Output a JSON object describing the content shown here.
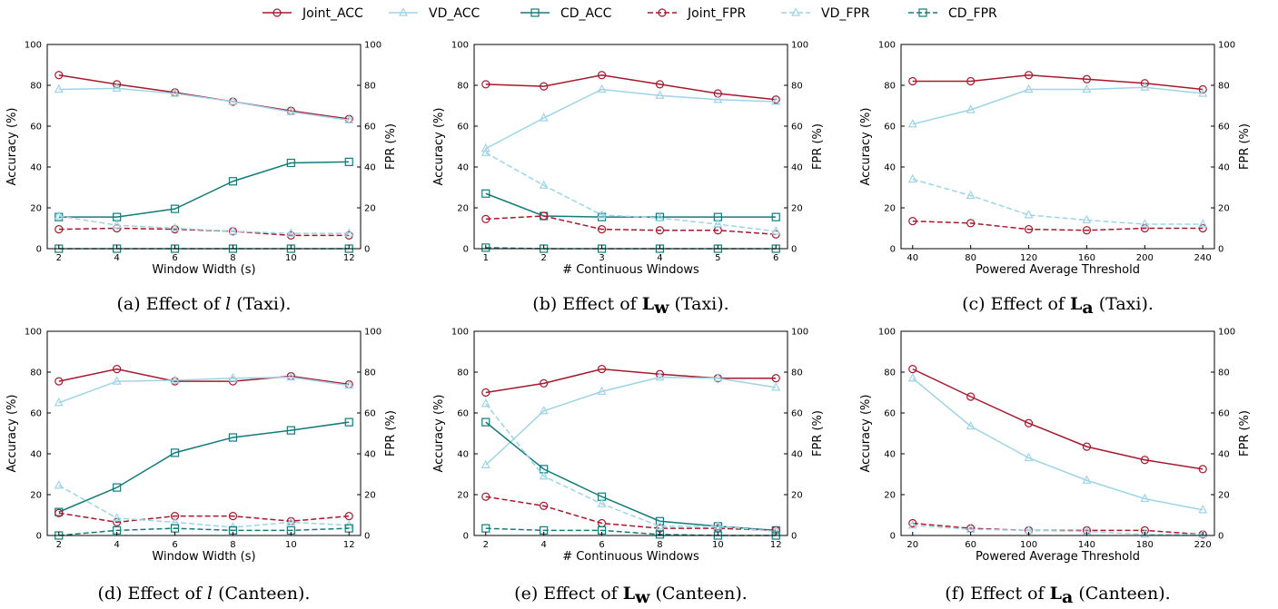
{
  "legend": [
    {
      "key": "joint_acc",
      "label": "Joint_ACC",
      "color": "#a8182c",
      "dash": false,
      "marker": "circle"
    },
    {
      "key": "vd_acc",
      "label": "VD_ACC",
      "color": "#9dd4e8",
      "dash": false,
      "marker": "triangle"
    },
    {
      "key": "cd_acc",
      "label": "CD_ACC",
      "color": "#167a7a",
      "dash": false,
      "marker": "square"
    },
    {
      "key": "joint_fpr",
      "label": "Joint_FPR",
      "color": "#a8182c",
      "dash": true,
      "marker": "circle"
    },
    {
      "key": "vd_fpr",
      "label": "VD_FPR",
      "color": "#9dd4e8",
      "dash": true,
      "marker": "triangle"
    },
    {
      "key": "cd_fpr",
      "label": "CD_FPR",
      "color": "#167a7a",
      "dash": true,
      "marker": "square"
    }
  ],
  "chart_data": [
    {
      "type": "line",
      "caption": {
        "prefix": "(a) Effect of ",
        "symbol": "l",
        "symbol_style": "italic",
        "suffix": " (Taxi)."
      },
      "xlabel": "Window Width (s)",
      "ylabel": "Accuracy (%)",
      "y2label": "FPR (%)",
      "x": [
        2,
        4,
        6,
        8,
        10,
        12
      ],
      "xlim": [
        1.6,
        12.4
      ],
      "ylim": [
        0,
        100
      ],
      "y2lim": [
        0,
        100
      ],
      "yticks": [
        0,
        20,
        40,
        60,
        80,
        100
      ],
      "series": [
        {
          "key": "joint_acc",
          "values": [
            85,
            80.5,
            76.5,
            72,
            67.5,
            63.5
          ]
        },
        {
          "key": "vd_acc",
          "values": [
            78,
            78.5,
            76,
            72,
            67,
            63
          ]
        },
        {
          "key": "cd_acc",
          "values": [
            15.5,
            15.5,
            19.5,
            33,
            42,
            42.5
          ]
        },
        {
          "key": "joint_fpr",
          "values": [
            9.5,
            10,
            9.5,
            8.5,
            6.5,
            6.5
          ]
        },
        {
          "key": "vd_fpr",
          "values": [
            16,
            11.5,
            10,
            8.5,
            7.5,
            7.5
          ]
        },
        {
          "key": "cd_fpr",
          "values": [
            0,
            0,
            0,
            0,
            0,
            0
          ]
        }
      ]
    },
    {
      "type": "line",
      "caption": {
        "prefix": "(b) Effect of ",
        "symbol": "L",
        "symbol_sub": "w",
        "symbol_style": "bold",
        "suffix": " (Taxi)."
      },
      "xlabel": "# Continuous Windows",
      "ylabel": "Accuracy (%)",
      "y2label": "FPR (%)",
      "x": [
        1,
        2,
        3,
        4,
        5,
        6
      ],
      "xlim": [
        0.8,
        6.2
      ],
      "ylim": [
        0,
        100
      ],
      "y2lim": [
        0,
        100
      ],
      "yticks": [
        0,
        20,
        40,
        60,
        80,
        100
      ],
      "series": [
        {
          "key": "joint_acc",
          "values": [
            80.5,
            79.5,
            85,
            80.5,
            76,
            73
          ]
        },
        {
          "key": "vd_acc",
          "values": [
            49,
            64,
            78,
            75,
            73,
            72
          ]
        },
        {
          "key": "cd_acc",
          "values": [
            27,
            16,
            15.5,
            15.5,
            15.5,
            15.5
          ]
        },
        {
          "key": "joint_fpr",
          "values": [
            14.5,
            16,
            9.5,
            9,
            9,
            7
          ]
        },
        {
          "key": "vd_fpr",
          "values": [
            47,
            31,
            16.5,
            15,
            12,
            8.5
          ]
        },
        {
          "key": "cd_fpr",
          "values": [
            0.5,
            0,
            0,
            0,
            0,
            0
          ]
        }
      ]
    },
    {
      "type": "line",
      "caption": {
        "prefix": "(c) Effect of ",
        "symbol": "L",
        "symbol_sub": "a",
        "symbol_style": "bold",
        "suffix": " (Taxi)."
      },
      "xlabel": "Powered Average Threshold",
      "ylabel": "Accuracy (%)",
      "y2label": "FPR (%)",
      "x": [
        40,
        80,
        120,
        160,
        200,
        240
      ],
      "xlim": [
        32,
        248
      ],
      "ylim": [
        0,
        100
      ],
      "y2lim": [
        0,
        100
      ],
      "yticks": [
        0,
        20,
        40,
        60,
        80,
        100
      ],
      "series": [
        {
          "key": "joint_acc",
          "values": [
            82,
            82,
            85,
            83,
            81,
            78
          ]
        },
        {
          "key": "vd_acc",
          "values": [
            61,
            68,
            78,
            78,
            79,
            76
          ]
        },
        {
          "key": "joint_fpr",
          "values": [
            13.5,
            12.5,
            9.5,
            9,
            10,
            10
          ]
        },
        {
          "key": "vd_fpr",
          "values": [
            34,
            26,
            16.5,
            14,
            12,
            12
          ]
        }
      ]
    },
    {
      "type": "line",
      "caption": {
        "prefix": "(d) Effect of ",
        "symbol": "l",
        "symbol_style": "italic",
        "suffix": " (Canteen)."
      },
      "xlabel": "Window Width (s)",
      "ylabel": "Accuracy (%)",
      "y2label": "FPR (%)",
      "x": [
        2,
        4,
        6,
        8,
        10,
        12
      ],
      "xlim": [
        1.6,
        12.4
      ],
      "ylim": [
        0,
        100
      ],
      "y2lim": [
        0,
        100
      ],
      "yticks": [
        0,
        20,
        40,
        60,
        80,
        100
      ],
      "series": [
        {
          "key": "joint_acc",
          "values": [
            75.5,
            81.5,
            75.5,
            75.5,
            78,
            74
          ]
        },
        {
          "key": "vd_acc",
          "values": [
            65,
            75.5,
            76,
            77,
            77.5,
            73.5
          ]
        },
        {
          "key": "cd_acc",
          "values": [
            11.5,
            23.5,
            40.5,
            48,
            51.5,
            55.5
          ]
        },
        {
          "key": "joint_fpr",
          "values": [
            11,
            6.5,
            9.5,
            9.5,
            7,
            9.5
          ]
        },
        {
          "key": "vd_fpr",
          "values": [
            24.5,
            8.5,
            6.5,
            4,
            6.5,
            5
          ]
        },
        {
          "key": "cd_fpr",
          "values": [
            0,
            2.5,
            3.5,
            2.5,
            2.5,
            3.5
          ]
        }
      ]
    },
    {
      "type": "line",
      "caption": {
        "prefix": "(e) Effect of ",
        "symbol": "L",
        "symbol_sub": "w",
        "symbol_style": "bold",
        "suffix": " (Canteen)."
      },
      "xlabel": "# Continuous Windows",
      "ylabel": "Accuracy (%)",
      "y2label": "FPR (%)",
      "x": [
        2,
        4,
        6,
        8,
        10,
        12
      ],
      "xlim": [
        1.6,
        12.4
      ],
      "ylim": [
        0,
        100
      ],
      "y2lim": [
        0,
        100
      ],
      "yticks": [
        0,
        20,
        40,
        60,
        80,
        100
      ],
      "series": [
        {
          "key": "joint_acc",
          "values": [
            70,
            74.5,
            81.5,
            79,
            77,
            77
          ]
        },
        {
          "key": "vd_acc",
          "values": [
            34.5,
            61,
            70.5,
            77.5,
            77,
            72.5
          ]
        },
        {
          "key": "cd_acc",
          "values": [
            55.5,
            32.5,
            19,
            7,
            4.5,
            2.5
          ]
        },
        {
          "key": "joint_fpr",
          "values": [
            19,
            14.5,
            6,
            3.5,
            3.5,
            2.5
          ]
        },
        {
          "key": "vd_fpr",
          "values": [
            64.5,
            29,
            15.5,
            4.5,
            4.5,
            2
          ]
        },
        {
          "key": "cd_fpr",
          "values": [
            3.5,
            2.5,
            2.5,
            0.5,
            0,
            0
          ]
        }
      ]
    },
    {
      "type": "line",
      "caption": {
        "prefix": "(f) Effect of ",
        "symbol": "L",
        "symbol_sub": "a",
        "symbol_style": "bold",
        "suffix": " (Canteen)."
      },
      "xlabel": "Powered Average Threshold",
      "ylabel": "Accuracy (%)",
      "y2label": "FPR (%)",
      "x": [
        20,
        60,
        100,
        140,
        180,
        220
      ],
      "xlim": [
        12,
        228
      ],
      "ylim": [
        0,
        100
      ],
      "y2lim": [
        0,
        100
      ],
      "yticks": [
        0,
        20,
        40,
        60,
        80,
        100
      ],
      "series": [
        {
          "key": "joint_acc",
          "values": [
            81.5,
            68,
            55,
            43.5,
            37,
            32.5
          ]
        },
        {
          "key": "vd_acc",
          "values": [
            77,
            53.5,
            38,
            27,
            18,
            12.5
          ]
        },
        {
          "key": "joint_fpr",
          "values": [
            6,
            3.5,
            2.5,
            2.5,
            2.5,
            0.5
          ]
        },
        {
          "key": "vd_fpr",
          "values": [
            5,
            3,
            2.5,
            2,
            0.5,
            0.5
          ]
        }
      ]
    }
  ]
}
